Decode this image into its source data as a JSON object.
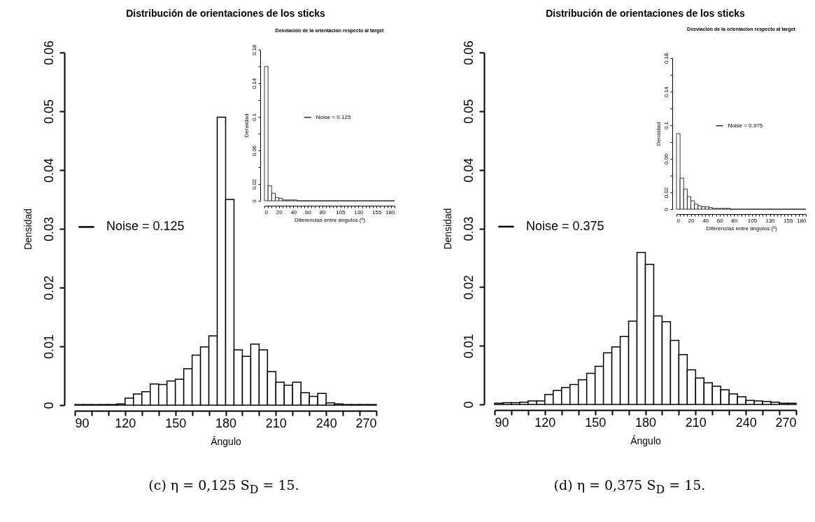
{
  "chart_data": [
    {
      "type": "histogram",
      "title": "Distribución  de orientaciones de los sticks",
      "xlabel": "Ángulo",
      "ylabel": "Densidad",
      "bins": [
        90,
        95,
        100,
        105,
        110,
        115,
        120,
        125,
        130,
        135,
        140,
        145,
        150,
        155,
        160,
        165,
        170,
        175,
        180,
        185,
        190,
        195,
        200,
        205,
        210,
        215,
        220,
        225,
        230,
        235,
        240,
        245,
        250,
        255,
        260,
        265,
        270
      ],
      "series": [
        {
          "name": "Noise = 0.125",
          "color": "#000000",
          "values": [
            0.0001,
            0.0001,
            0.0001,
            0.0001,
            0.0001,
            0.0002,
            0.0012,
            0.0019,
            0.0023,
            0.0036,
            0.0035,
            0.0041,
            0.0044,
            0.0062,
            0.0085,
            0.0099,
            0.0118,
            0.049,
            0.035,
            0.0094,
            0.0083,
            0.0104,
            0.0094,
            0.0057,
            0.0039,
            0.0034,
            0.0039,
            0.0021,
            0.0015,
            0.002,
            0.0004,
            0.0002,
            0.0001,
            0.0001,
            0.0001,
            0.0001
          ]
        }
      ],
      "xlim": [
        90,
        270
      ],
      "ylim": [
        0,
        0.06
      ],
      "xticks": [
        90,
        {
          "value": 100,
          "label": null
        },
        {
          "value": 110,
          "label": null
        },
        120,
        {
          "value": 130,
          "label": null
        },
        {
          "value": 140,
          "label": null
        },
        150,
        {
          "value": 160,
          "label": null
        },
        {
          "value": 170,
          "label": null
        },
        180,
        {
          "value": 190,
          "label": null
        },
        {
          "value": 200,
          "label": null
        },
        210,
        {
          "value": 220,
          "label": null
        },
        {
          "value": 230,
          "label": null
        },
        240,
        {
          "value": 250,
          "label": null
        },
        {
          "value": 260,
          "label": null
        },
        270
      ],
      "yticks": [
        0,
        0.01,
        0.02,
        0.03,
        0.04,
        0.05,
        0.06
      ],
      "legend": "left",
      "annotations": [
        "(c) η = 0,125 S$_{D}$ = 15."
      ]
    },
    {
      "type": "histogram",
      "title": "Desviación de la orientacion respecto al target",
      "xlabel": "Diferencias entre ángulos (º)",
      "ylabel": "Densidad",
      "bins": [
        0,
        5,
        10,
        15,
        20,
        25,
        30,
        35,
        40,
        45,
        50,
        55,
        60,
        65,
        70,
        75,
        80,
        85,
        90,
        95,
        100,
        105,
        110,
        115,
        120,
        125,
        130,
        135,
        140,
        145,
        150,
        155,
        160,
        165,
        170,
        175,
        180
      ],
      "series": [
        {
          "name": "Noise = 0.125",
          "color": "#000000",
          "values": [
            0.16,
            0.018,
            0.009,
            0.004,
            0.003,
            0.001,
            0.001,
            0.001,
            0.001,
            0,
            0,
            0,
            0,
            0,
            0,
            0,
            0,
            0,
            0,
            0,
            0,
            0,
            0,
            0,
            0,
            0,
            0,
            0,
            0,
            0,
            0,
            0,
            0,
            0,
            0,
            0
          ]
        }
      ],
      "xlim": [
        0,
        180
      ],
      "ylim": [
        0,
        0.18
      ],
      "xticks": [
        0,
        {
          "value": 5,
          "label": null
        },
        {
          "value": 10,
          "label": null
        },
        {
          "value": 15,
          "label": null
        },
        20,
        {
          "value": 25,
          "label": null
        },
        {
          "value": 30,
          "label": null
        },
        {
          "value": 35,
          "label": null
        },
        40,
        {
          "value": 45,
          "label": null
        },
        {
          "value": 50,
          "label": null
        },
        {
          "value": 55,
          "label": null
        },
        60,
        {
          "value": 65,
          "label": null
        },
        {
          "value": 70,
          "label": null
        },
        {
          "value": 75,
          "label": null
        },
        80,
        {
          "value": 85,
          "label": null
        },
        {
          "value": 90,
          "label": null
        },
        {
          "value": 95,
          "label": null
        },
        {
          "value": 100,
          "label": null
        },
        105,
        {
          "value": 110,
          "label": null
        },
        {
          "value": 115,
          "label": null
        },
        {
          "value": 120,
          "label": null
        },
        {
          "value": 125,
          "label": null
        },
        130,
        {
          "value": 135,
          "label": null
        },
        {
          "value": 140,
          "label": null
        },
        {
          "value": 145,
          "label": null
        },
        {
          "value": 150,
          "label": null
        },
        155,
        {
          "value": 160,
          "label": null
        },
        {
          "value": 165,
          "label": null
        },
        {
          "value": 170,
          "label": null
        },
        {
          "value": 175,
          "label": null
        },
        180
      ],
      "yticks": [
        0,
        0.02,
        {
          "value": 0.04,
          "label": null
        },
        0.06,
        {
          "value": 0.08,
          "label": null
        },
        0.1,
        {
          "value": 0.12,
          "label": null
        },
        0.14,
        {
          "value": 0.16,
          "label": null
        },
        0.18
      ],
      "legend": "center"
    },
    {
      "type": "histogram",
      "title": "Distribución  de orientaciones de los sticks",
      "xlabel": "Ángulo",
      "ylabel": "Densidad",
      "bins": [
        90,
        95,
        100,
        105,
        110,
        115,
        120,
        125,
        130,
        135,
        140,
        145,
        150,
        155,
        160,
        165,
        170,
        175,
        180,
        185,
        190,
        195,
        200,
        205,
        210,
        215,
        220,
        225,
        230,
        235,
        240,
        245,
        250,
        255,
        260,
        265,
        270
      ],
      "series": [
        {
          "name": "Noise = 0.375",
          "color": "#000000",
          "values": [
            0.0002,
            0.0003,
            0.0003,
            0.0004,
            0.0006,
            0.0006,
            0.0017,
            0.0024,
            0.0029,
            0.0034,
            0.0042,
            0.0053,
            0.0065,
            0.0088,
            0.0098,
            0.0116,
            0.0142,
            0.0259,
            0.0239,
            0.0151,
            0.0141,
            0.0109,
            0.0085,
            0.0059,
            0.0045,
            0.0037,
            0.0031,
            0.0025,
            0.0018,
            0.0013,
            0.0007,
            0.0006,
            0.0005,
            0.0004,
            0.0002,
            0.0002
          ]
        }
      ],
      "xlim": [
        90,
        270
      ],
      "ylim": [
        0,
        0.06
      ],
      "xticks": [
        90,
        {
          "value": 100,
          "label": null
        },
        {
          "value": 110,
          "label": null
        },
        120,
        {
          "value": 130,
          "label": null
        },
        {
          "value": 140,
          "label": null
        },
        150,
        {
          "value": 160,
          "label": null
        },
        {
          "value": 170,
          "label": null
        },
        180,
        {
          "value": 190,
          "label": null
        },
        {
          "value": 200,
          "label": null
        },
        210,
        {
          "value": 220,
          "label": null
        },
        {
          "value": 230,
          "label": null
        },
        240,
        {
          "value": 250,
          "label": null
        },
        {
          "value": 260,
          "label": null
        },
        270
      ],
      "yticks": [
        0,
        0.01,
        0.02,
        0.03,
        0.04,
        0.05,
        0.06
      ],
      "legend": "left",
      "annotations": [
        "(d) η = 0,375 S$_{D}$ = 15."
      ]
    },
    {
      "type": "histogram",
      "title": "Desviación de la orientacion respecto al target",
      "xlabel": "Diferencias entre ángulos (º)",
      "ylabel": "Densidad",
      "bins": [
        0,
        5,
        10,
        15,
        20,
        25,
        30,
        35,
        40,
        45,
        50,
        55,
        60,
        65,
        70,
        75,
        80,
        85,
        90,
        95,
        100,
        105,
        110,
        115,
        120,
        125,
        130,
        135,
        140,
        145,
        150,
        155,
        160,
        165,
        170,
        175,
        180
      ],
      "series": [
        {
          "name": "Noise = 0.375",
          "color": "#000000",
          "values": [
            0.09,
            0.037,
            0.024,
            0.015,
            0.01,
            0.006,
            0.004,
            0.003,
            0.003,
            0.002,
            0.001,
            0.001,
            0.001,
            0.001,
            0.001,
            0,
            0,
            0,
            0,
            0,
            0,
            0,
            0,
            0,
            0,
            0,
            0,
            0,
            0,
            0,
            0,
            0,
            0,
            0,
            0,
            0
          ]
        }
      ],
      "xlim": [
        0,
        180
      ],
      "ylim": [
        0,
        0.18
      ],
      "xticks": [
        0,
        {
          "value": 5,
          "label": null
        },
        {
          "value": 10,
          "label": null
        },
        {
          "value": 15,
          "label": null
        },
        20,
        {
          "value": 25,
          "label": null
        },
        {
          "value": 30,
          "label": null
        },
        {
          "value": 35,
          "label": null
        },
        40,
        {
          "value": 45,
          "label": null
        },
        {
          "value": 50,
          "label": null
        },
        {
          "value": 55,
          "label": null
        },
        60,
        {
          "value": 65,
          "label": null
        },
        {
          "value": 70,
          "label": null
        },
        {
          "value": 75,
          "label": null
        },
        80,
        {
          "value": 85,
          "label": null
        },
        {
          "value": 90,
          "label": null
        },
        {
          "value": 95,
          "label": null
        },
        {
          "value": 100,
          "label": null
        },
        105,
        {
          "value": 110,
          "label": null
        },
        {
          "value": 115,
          "label": null
        },
        {
          "value": 120,
          "label": null
        },
        {
          "value": 125,
          "label": null
        },
        130,
        {
          "value": 135,
          "label": null
        },
        {
          "value": 140,
          "label": null
        },
        {
          "value": 145,
          "label": null
        },
        {
          "value": 150,
          "label": null
        },
        155,
        {
          "value": 160,
          "label": null
        },
        {
          "value": 165,
          "label": null
        },
        {
          "value": 170,
          "label": null
        },
        {
          "value": 175,
          "label": null
        },
        180
      ],
      "yticks": [
        0,
        0.02,
        {
          "value": 0.04,
          "label": null
        },
        0.06,
        {
          "value": 0.08,
          "label": null
        },
        0.1,
        {
          "value": 0.12,
          "label": null
        },
        0.14,
        {
          "value": 0.16,
          "label": null
        },
        0.18
      ],
      "legend": "center"
    }
  ]
}
